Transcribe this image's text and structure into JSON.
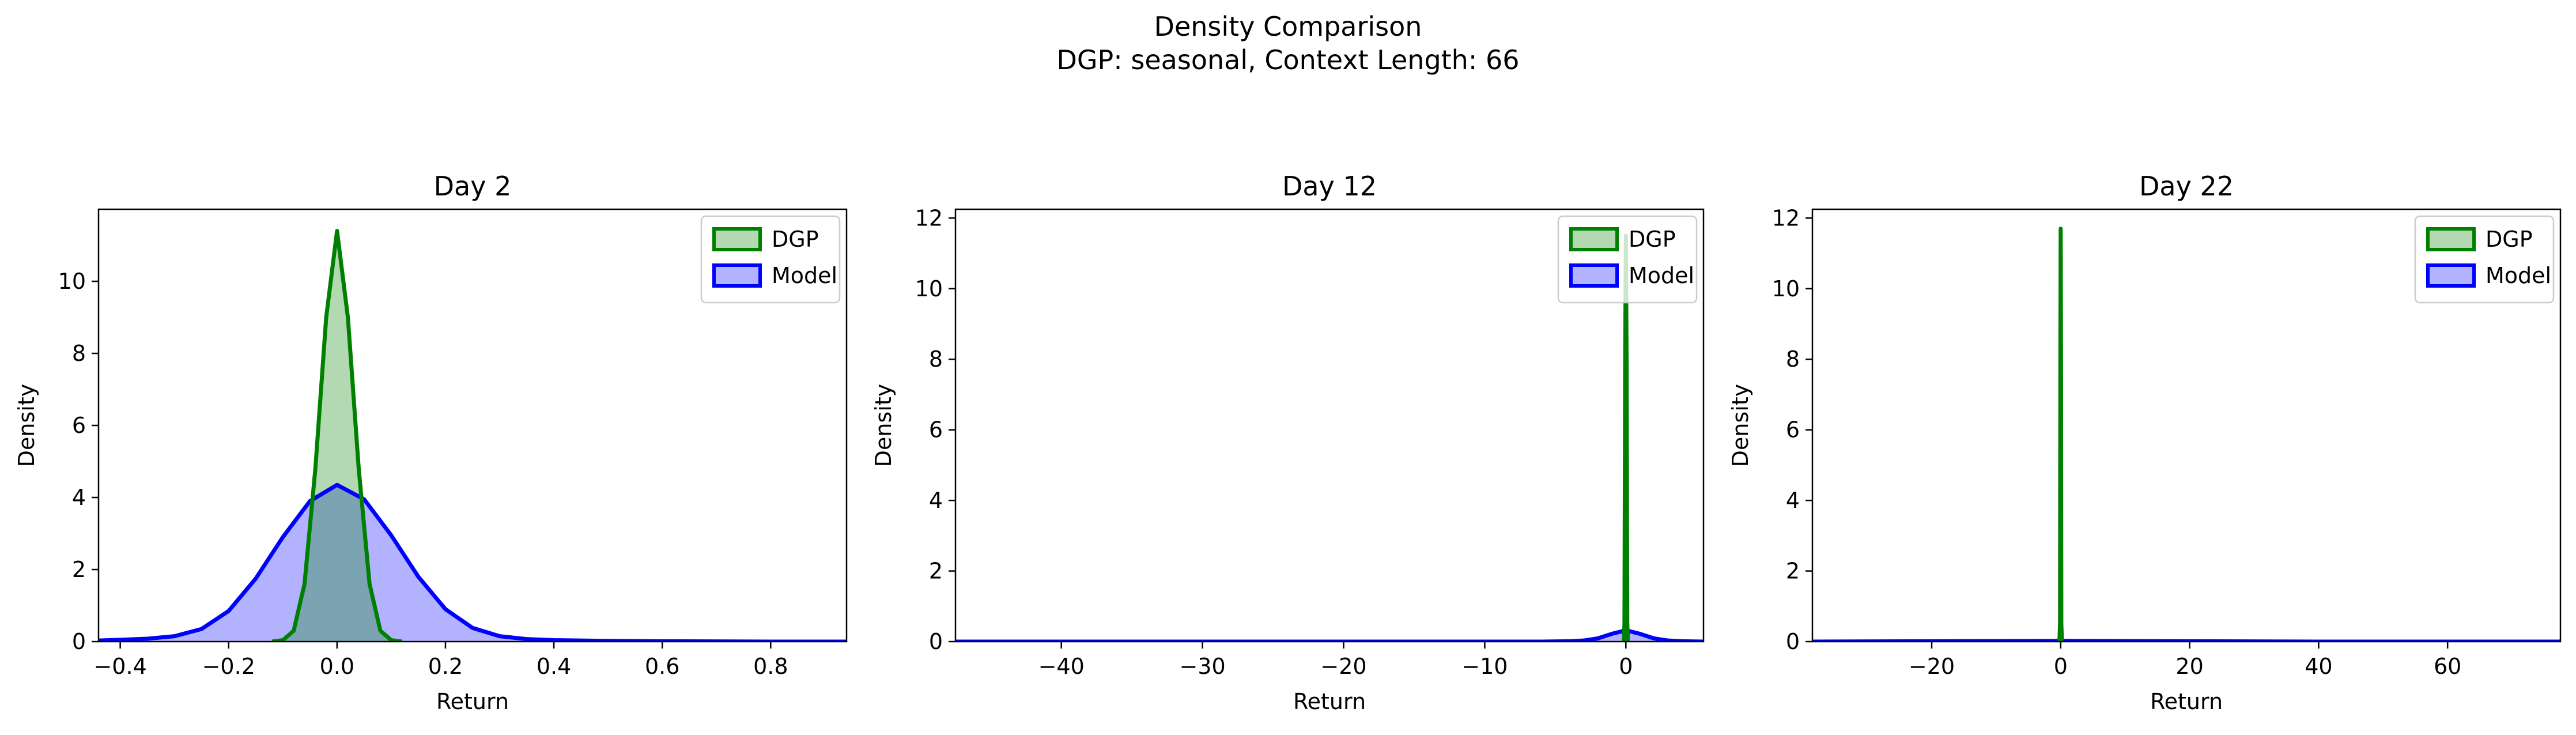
{
  "figure": {
    "title_line1": "Density Comparison",
    "title_line2": "DGP: seasonal, Context Length: 66"
  },
  "colors": {
    "dgp_line": "#008000",
    "dgp_fill": "#008000",
    "model_line": "#0000ff",
    "model_fill": "#0000ff"
  },
  "legend": {
    "labels": [
      "DGP",
      "Model"
    ],
    "placement": "upper-right"
  },
  "chart_data": [
    {
      "type": "area",
      "title": "Day 2",
      "xlabel": "Return",
      "ylabel": "Density",
      "xlim": [
        -0.44,
        0.94
      ],
      "ylim": [
        0,
        12
      ],
      "xticks": [
        -0.4,
        -0.2,
        0.0,
        0.2,
        0.4,
        0.6,
        0.8
      ],
      "xtick_labels": [
        "−0.4",
        "−0.2",
        "0.0",
        "0.2",
        "0.4",
        "0.6",
        "0.8"
      ],
      "yticks": [
        0,
        2,
        4,
        6,
        8,
        10
      ],
      "series": [
        {
          "name": "DGP",
          "x": [
            -0.12,
            -0.1,
            -0.08,
            -0.06,
            -0.04,
            -0.02,
            0.0,
            0.02,
            0.04,
            0.06,
            0.08,
            0.1,
            0.12
          ],
          "values": [
            0.0,
            0.04,
            0.3,
            1.6,
            4.8,
            9.0,
            11.4,
            9.0,
            4.8,
            1.6,
            0.3,
            0.04,
            0.0
          ]
        },
        {
          "name": "Model",
          "x": [
            -0.44,
            -0.4,
            -0.35,
            -0.3,
            -0.25,
            -0.2,
            -0.15,
            -0.1,
            -0.05,
            0.0,
            0.05,
            0.1,
            0.15,
            0.2,
            0.25,
            0.3,
            0.35,
            0.4,
            0.5,
            0.6,
            0.8,
            0.94
          ],
          "values": [
            0.03,
            0.05,
            0.08,
            0.15,
            0.35,
            0.85,
            1.75,
            2.9,
            3.9,
            4.35,
            3.95,
            2.95,
            1.8,
            0.9,
            0.38,
            0.15,
            0.07,
            0.04,
            0.02,
            0.01,
            0.0,
            0.0
          ]
        }
      ]
    },
    {
      "type": "area",
      "title": "Day 12",
      "xlabel": "Return",
      "ylabel": "Density",
      "xlim": [
        -47.5,
        5.5
      ],
      "ylim": [
        0,
        12.25
      ],
      "xticks": [
        -40,
        -30,
        -20,
        -10,
        0
      ],
      "xtick_labels": [
        "−40",
        "−30",
        "−20",
        "−10",
        "0"
      ],
      "yticks": [
        0,
        2,
        4,
        6,
        8,
        10,
        12
      ],
      "series": [
        {
          "name": "DGP",
          "x": [
            -0.15,
            -0.1,
            -0.05,
            0.0,
            0.05,
            0.1,
            0.15
          ],
          "values": [
            0.0,
            0.5,
            8.0,
            11.5,
            8.0,
            0.5,
            0.0
          ]
        },
        {
          "name": "Model",
          "x": [
            -47.5,
            -20.0,
            -6.0,
            -4.0,
            -3.0,
            -2.0,
            -1.0,
            0.0,
            1.0,
            2.0,
            3.0,
            4.0,
            5.5
          ],
          "values": [
            0.0,
            0.0,
            0.0,
            0.01,
            0.03,
            0.09,
            0.22,
            0.32,
            0.22,
            0.09,
            0.03,
            0.01,
            0.0
          ]
        }
      ]
    },
    {
      "type": "area",
      "title": "Day 22",
      "xlabel": "Return",
      "ylabel": "Density",
      "xlim": [
        -38.5,
        77.5
      ],
      "ylim": [
        0,
        12.25
      ],
      "xticks": [
        -20,
        0,
        20,
        40,
        60
      ],
      "xtick_labels": [
        "−20",
        "0",
        "20",
        "40",
        "60"
      ],
      "yticks": [
        0,
        2,
        4,
        6,
        8,
        10,
        12
      ],
      "series": [
        {
          "name": "DGP",
          "x": [
            -0.2,
            -0.1,
            -0.05,
            0.0,
            0.05,
            0.1,
            0.2
          ],
          "values": [
            0.0,
            0.5,
            8.0,
            11.7,
            8.0,
            0.5,
            0.0
          ]
        },
        {
          "name": "Model",
          "x": [
            -38.5,
            -20.0,
            -10.0,
            0.0,
            10.0,
            20.0,
            40.0,
            77.5
          ],
          "values": [
            0.0,
            0.01,
            0.015,
            0.02,
            0.015,
            0.01,
            0.0,
            0.0
          ]
        }
      ]
    }
  ]
}
